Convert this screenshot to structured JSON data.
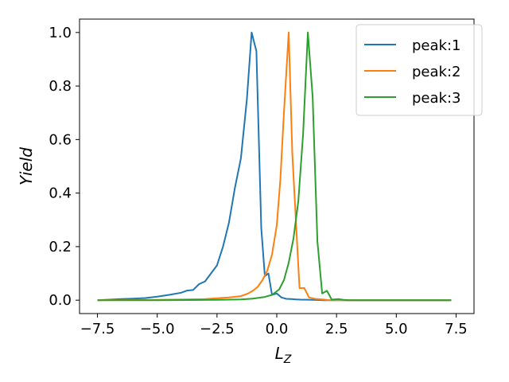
{
  "chart_data": {
    "type": "line",
    "title": "",
    "xlabel_main": "L",
    "xlabel_sub": "Z",
    "ylabel": "Yield",
    "xlim": [
      -8.25,
      8.25
    ],
    "ylim": [
      -0.05,
      1.05
    ],
    "xticks": [
      -7.5,
      -5.0,
      -2.5,
      0.0,
      2.5,
      5.0,
      7.5
    ],
    "xtick_labels": [
      "−7.5",
      "−5.0",
      "−2.5",
      "0.0",
      "2.5",
      "5.0",
      "7.5"
    ],
    "yticks": [
      0.0,
      0.2,
      0.4,
      0.6,
      0.8,
      1.0
    ],
    "ytick_labels": [
      "0.0",
      "0.2",
      "0.4",
      "0.6",
      "0.8",
      "1.0"
    ],
    "grid": false,
    "legend_position": "top-right",
    "series": [
      {
        "name": "peak:1",
        "color": "#1f77b4",
        "x": [
          -7.5,
          -7.0,
          -6.5,
          -6.0,
          -5.5,
          -5.0,
          -4.5,
          -4.0,
          -3.75,
          -3.5,
          -3.25,
          -3.0,
          -2.75,
          -2.5,
          -2.25,
          -2.0,
          -1.75,
          -1.5,
          -1.25,
          -1.05,
          -0.85,
          -0.65,
          -0.5,
          -0.35,
          -0.2,
          0.0,
          0.2,
          0.4,
          0.6,
          0.8,
          1.0,
          1.5,
          2.0,
          2.5,
          3.0,
          7.3
        ],
        "y": [
          0.0,
          0.002,
          0.004,
          0.006,
          0.008,
          0.013,
          0.02,
          0.028,
          0.036,
          0.038,
          0.06,
          0.07,
          0.1,
          0.13,
          0.2,
          0.29,
          0.42,
          0.53,
          0.75,
          1.0,
          0.93,
          0.27,
          0.09,
          0.1,
          0.02,
          0.025,
          0.01,
          0.005,
          0.004,
          0.003,
          0.002,
          0.001,
          0.0,
          0.0,
          0.0,
          0.0
        ]
      },
      {
        "name": "peak:2",
        "color": "#ff7f0e",
        "x": [
          -7.5,
          -5.0,
          -3.0,
          -2.0,
          -1.5,
          -1.2,
          -1.0,
          -0.8,
          -0.6,
          -0.4,
          -0.2,
          0.0,
          0.15,
          0.3,
          0.5,
          0.65,
          0.8,
          0.95,
          1.15,
          1.35,
          1.6,
          2.0,
          2.2,
          7.3
        ],
        "y": [
          0.0,
          0.001,
          0.004,
          0.01,
          0.015,
          0.025,
          0.035,
          0.05,
          0.075,
          0.11,
          0.17,
          0.28,
          0.45,
          0.7,
          1.0,
          0.55,
          0.3,
          0.045,
          0.045,
          0.01,
          0.005,
          0.002,
          0.0,
          0.0
        ]
      },
      {
        "name": "peak:3",
        "color": "#2ca02c",
        "x": [
          -7.5,
          -5.0,
          -2.5,
          -1.5,
          -1.0,
          -0.5,
          -0.2,
          0.1,
          0.3,
          0.5,
          0.7,
          0.9,
          1.1,
          1.3,
          1.5,
          1.7,
          1.9,
          2.1,
          2.3,
          2.6,
          2.8,
          3.0,
          7.3
        ],
        "y": [
          0.0,
          0.0,
          0.001,
          0.003,
          0.006,
          0.012,
          0.02,
          0.04,
          0.075,
          0.14,
          0.23,
          0.37,
          0.62,
          1.0,
          0.76,
          0.22,
          0.025,
          0.035,
          0.002,
          0.004,
          0.001,
          0.0,
          0.0
        ]
      }
    ]
  }
}
